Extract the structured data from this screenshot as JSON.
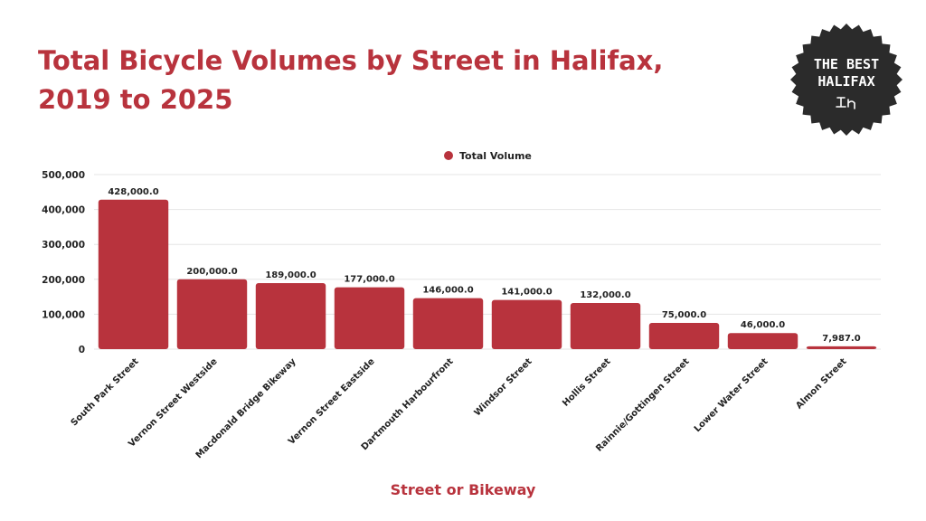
{
  "page": {
    "title_line1": "Total Bicycle Volumes by Street in Halifax,",
    "title_line2": "2019 to 2025",
    "badge": {
      "line1": "THE BEST",
      "line2": "HALIFAX",
      "mark": "_̇ıη",
      "background": "#2b2b2b",
      "text_color": "#ffffff"
    }
  },
  "colors": {
    "accent": "#b8333d",
    "bar": "#b8333d",
    "grid": "#e6e6e6",
    "text": "#222222"
  },
  "chart_data": {
    "type": "bar",
    "title": "Total Bicycle Volumes by Street in Halifax, 2019 to 2025",
    "xlabel": "Street or Bikeway",
    "ylabel": "",
    "ylim": [
      0,
      500000
    ],
    "yticks": [
      0,
      100000,
      200000,
      300000,
      400000,
      500000
    ],
    "ytick_labels": [
      "0",
      "100,000",
      "200,000",
      "300,000",
      "400,000",
      "500,000"
    ],
    "grid": true,
    "legend": {
      "position": "top-center",
      "entries": [
        "Total Volume"
      ]
    },
    "categories": [
      "South Park Street",
      "Vernon Street Westside",
      "Macdonald Bridge Bikeway",
      "Vernon Street Eastside",
      "Dartmouth Harbourfront",
      "Windsor Street",
      "Hollis Street",
      "Rainnie/Gottingen Street",
      "Lower Water Street",
      "Almon Street"
    ],
    "series": [
      {
        "name": "Total Volume",
        "values": [
          428000,
          200000,
          189000,
          177000,
          146000,
          141000,
          132000,
          75000,
          46000,
          7987
        ],
        "labels": [
          "428,000.0",
          "200,000.0",
          "189,000.0",
          "177,000.0",
          "146,000.0",
          "141,000.0",
          "132,000.0",
          "75,000.0",
          "46,000.0",
          "7,987.0"
        ]
      }
    ]
  }
}
